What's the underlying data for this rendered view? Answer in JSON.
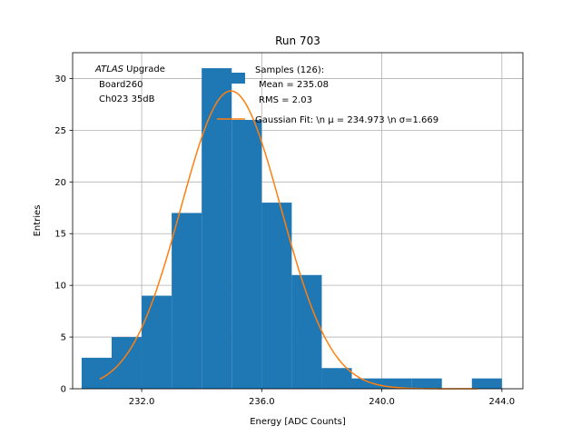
{
  "chart_data": {
    "type": "bar",
    "subtype": "histogram",
    "title": "Run 703",
    "xlabel": "Energy [ADC Counts]",
    "ylabel": "Entries",
    "xlim": [
      229.7,
      244.7
    ],
    "ylim": [
      0,
      32.5
    ],
    "grid": true,
    "x_ticks": [
      232.0,
      236.0,
      240.0,
      244.0
    ],
    "x_tick_labels": [
      "232.0",
      "236.0",
      "240.0",
      "244.0"
    ],
    "y_ticks": [
      0,
      5,
      10,
      15,
      20,
      25,
      30
    ],
    "y_tick_labels": [
      "0",
      "5",
      "10",
      "15",
      "20",
      "25",
      "30"
    ],
    "bar_color": "#1f77b4",
    "fit_color": "#ff7f0e",
    "bins": [
      {
        "left": 230.0,
        "right": 231.0,
        "count": 3
      },
      {
        "left": 231.0,
        "right": 232.0,
        "count": 5
      },
      {
        "left": 232.0,
        "right": 233.0,
        "count": 9
      },
      {
        "left": 233.0,
        "right": 234.0,
        "count": 17
      },
      {
        "left": 234.0,
        "right": 235.0,
        "count": 31
      },
      {
        "left": 235.0,
        "right": 236.0,
        "count": 26
      },
      {
        "left": 236.0,
        "right": 237.0,
        "count": 18
      },
      {
        "left": 237.0,
        "right": 238.0,
        "count": 11
      },
      {
        "left": 238.0,
        "right": 239.0,
        "count": 2
      },
      {
        "left": 239.0,
        "right": 240.0,
        "count": 1
      },
      {
        "left": 240.0,
        "right": 241.0,
        "count": 1
      },
      {
        "left": 241.0,
        "right": 242.0,
        "count": 1
      },
      {
        "left": 242.0,
        "right": 243.0,
        "count": 0
      },
      {
        "left": 243.0,
        "right": 244.0,
        "count": 1
      }
    ],
    "fit": {
      "type": "gaussian",
      "mu": 234.973,
      "sigma": 1.669,
      "amplitude": 28.8,
      "x_range": [
        230.6,
        243.2
      ]
    },
    "annotation_lines": [
      "ATLAS Upgrade",
      "Board260",
      "Ch023 35dB"
    ],
    "legend": {
      "location": "top-center",
      "entries": [
        {
          "kind": "patch",
          "lines": [
            "Samples (126):",
            "Mean = 235.08",
            "RMS = 2.03"
          ]
        },
        {
          "kind": "line",
          "lines": [
            "Gaussian Fit: \\n μ = 234.973 \\n σ=1.669"
          ]
        }
      ]
    }
  }
}
